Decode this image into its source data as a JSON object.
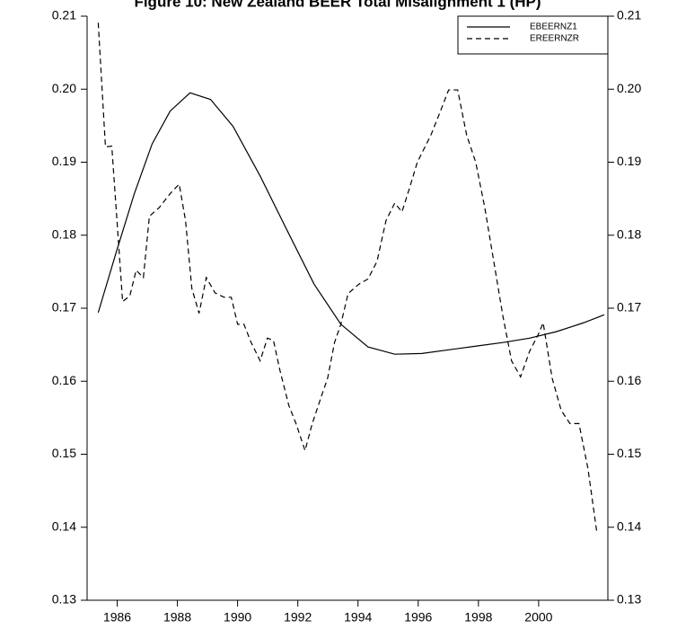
{
  "chart_data": {
    "type": "line",
    "title": "Figure 10: New Zealand BEER Total Misalignment 1 (HP)",
    "xlim": [
      1985,
      2002.3
    ],
    "xticks": [
      1986,
      1988,
      1990,
      1992,
      1994,
      1996,
      1998,
      2000
    ],
    "ylim": [
      0.13,
      0.21
    ],
    "yticks": [
      0.13,
      0.14,
      0.15,
      0.16,
      0.17,
      0.18,
      0.19,
      {
        "value": 0.2,
        "label": "0.20"
      },
      0.21
    ],
    "y2lim": [
      0.13,
      0.21
    ],
    "y2ticks": [
      0.13,
      0.14,
      0.15,
      0.16,
      0.17,
      0.18,
      0.19,
      {
        "value": 0.2,
        "label": "0.20"
      },
      0.21
    ],
    "legend": "top-right",
    "series": [
      {
        "name": "EBEERNZ1",
        "color": "#000000",
        "dash": "solid",
        "x": [
          1985.37,
          1985.97,
          1986.57,
          1987.16,
          1987.76,
          1988.42,
          1989.1,
          1989.85,
          1990.75,
          1991.64,
          1992.54,
          1993.43,
          1994.33,
          1995.22,
          1996.12,
          1997.01,
          1997.91,
          1998.81,
          1999.7,
          2000.6,
          2001.49,
          2002.18
        ],
        "values": [
          0.1694,
          0.1777,
          0.1857,
          0.1925,
          0.197,
          0.1995,
          0.1986,
          0.1949,
          0.1881,
          0.1807,
          0.1733,
          0.1678,
          0.1647,
          0.1637,
          0.1638,
          0.1643,
          0.1648,
          0.1653,
          0.1659,
          0.1668,
          0.168,
          0.1691
        ]
      },
      {
        "name": "EREERNZR",
        "color": "#000000",
        "dash": "dashed",
        "x": [
          1985.37,
          1985.61,
          1985.82,
          1986.18,
          1986.42,
          1986.63,
          1986.87,
          1987.07,
          1987.4,
          1987.76,
          1988.06,
          1988.27,
          1988.48,
          1988.72,
          1988.96,
          1989.25,
          1989.55,
          1989.79,
          1990.0,
          1990.21,
          1990.45,
          1990.75,
          1990.99,
          1991.19,
          1991.4,
          1991.7,
          1991.94,
          1992.24,
          1992.48,
          1992.78,
          1992.99,
          1993.22,
          1993.43,
          1993.67,
          1994.03,
          1994.33,
          1994.63,
          1994.93,
          1995.22,
          1995.46,
          1995.7,
          1995.97,
          1996.42,
          1996.72,
          1997.01,
          1997.31,
          1997.61,
          1997.91,
          1998.21,
          1998.51,
          1998.81,
          1999.1,
          1999.4,
          1999.7,
          2000.0,
          2000.15,
          2000.45,
          2000.75,
          2001.04,
          2001.34,
          2001.64,
          2001.93
        ],
        "values": [
          0.2091,
          0.1921,
          0.1922,
          0.1709,
          0.1717,
          0.1752,
          0.1742,
          0.1826,
          0.1838,
          0.1857,
          0.187,
          0.182,
          0.1727,
          0.1693,
          0.1742,
          0.1721,
          0.1715,
          0.1715,
          0.1678,
          0.1678,
          0.1653,
          0.1628,
          0.1659,
          0.1656,
          0.1616,
          0.1567,
          0.1542,
          0.1505,
          0.1542,
          0.1579,
          0.1604,
          0.1653,
          0.1678,
          0.172,
          0.1733,
          0.174,
          0.1764,
          0.182,
          0.1844,
          0.1832,
          0.1863,
          0.19,
          0.1937,
          0.1968,
          0.1999,
          0.1999,
          0.1937,
          0.19,
          0.1838,
          0.1764,
          0.169,
          0.1628,
          0.1606,
          0.1641,
          0.1665,
          0.168,
          0.1604,
          0.156,
          0.1542,
          0.1542,
          0.148,
          0.1394
        ]
      }
    ]
  }
}
